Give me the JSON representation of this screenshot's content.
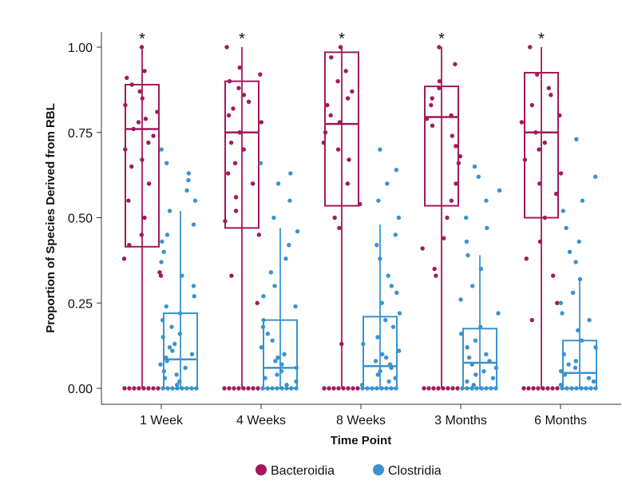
{
  "chart_data": {
    "type": "box",
    "title": "",
    "xlabel": "Time Point",
    "ylabel": "Proportion of Species Derived from RBL",
    "categories": [
      "1 Week",
      "4 Weeks",
      "8 Weeks",
      "3 Months",
      "6 Months"
    ],
    "ylim": [
      -0.05,
      1.05
    ],
    "yticks": [
      0.0,
      0.25,
      0.5,
      0.75,
      1.0
    ],
    "ytick_labels": [
      "0.00",
      "0.25",
      "0.50",
      "0.75",
      "1.00"
    ],
    "significance": [
      "*",
      "*",
      "*",
      "*",
      "*"
    ],
    "legend": {
      "position": "bottom",
      "entries": [
        "Bacteroidia",
        "Clostridia"
      ]
    },
    "grid": false,
    "series": [
      {
        "name": "Bacteroidia",
        "color": "#a3195b",
        "boxes": [
          {
            "whisker_low": 0.0,
            "q1": 0.415,
            "median": 0.76,
            "q3": 0.89,
            "whisker_high": 1.0
          },
          {
            "whisker_low": 0.0,
            "q1": 0.47,
            "median": 0.75,
            "q3": 0.9,
            "whisker_high": 1.0
          },
          {
            "whisker_low": 0.0,
            "q1": 0.535,
            "median": 0.775,
            "q3": 0.985,
            "whisker_high": 1.0
          },
          {
            "whisker_low": 0.0,
            "q1": 0.535,
            "median": 0.795,
            "q3": 0.885,
            "whisker_high": 1.0
          },
          {
            "whisker_low": 0.0,
            "q1": 0.5,
            "median": 0.75,
            "q3": 0.925,
            "whisker_high": 1.0
          }
        ],
        "points": [
          [
            1,
            0.93,
            0.91,
            0.89,
            0.87,
            0.85,
            0.83,
            0.81,
            0.79,
            0.78,
            0.76,
            0.74,
            0.72,
            0.7,
            0.67,
            0.65,
            0.6,
            0.55,
            0.5,
            0.45,
            0.42,
            0.38,
            0.34,
            0.33
          ],
          [
            1,
            0.94,
            0.92,
            0.9,
            0.88,
            0.86,
            0.84,
            0.82,
            0.8,
            0.78,
            0.75,
            0.72,
            0.7,
            0.66,
            0.63,
            0.6,
            0.56,
            0.52,
            0.49,
            0.45,
            0.33,
            0.25
          ],
          [
            1,
            0.97,
            0.93,
            0.9,
            0.87,
            0.85,
            0.83,
            0.8,
            0.78,
            0.75,
            0.72,
            0.7,
            0.67,
            0.6,
            0.54,
            0.5,
            0.47,
            0.13
          ],
          [
            1,
            0.95,
            0.9,
            0.88,
            0.85,
            0.83,
            0.8,
            0.79,
            0.77,
            0.74,
            0.71,
            0.68,
            0.66,
            0.6,
            0.55,
            0.5,
            0.44,
            0.41,
            0.35,
            0.33
          ],
          [
            1,
            0.92,
            0.88,
            0.86,
            0.83,
            0.8,
            0.78,
            0.75,
            0.72,
            0.7,
            0.67,
            0.63,
            0.6,
            0.57,
            0.5,
            0.43,
            0.38,
            0.33,
            0.25,
            0.2
          ]
        ]
      },
      {
        "name": "Clostridia",
        "color": "#3a93d0",
        "boxes": [
          {
            "whisker_low": 0.0,
            "q1": 0.0,
            "median": 0.085,
            "q3": 0.22,
            "whisker_high": 0.52
          },
          {
            "whisker_low": 0.0,
            "q1": 0.0,
            "median": 0.06,
            "q3": 0.2,
            "whisker_high": 0.47
          },
          {
            "whisker_low": 0.0,
            "q1": 0.0,
            "median": 0.065,
            "q3": 0.21,
            "whisker_high": 0.48
          },
          {
            "whisker_low": 0.0,
            "q1": 0.0,
            "median": 0.075,
            "q3": 0.175,
            "whisker_high": 0.39
          },
          {
            "whisker_low": 0.0,
            "q1": 0.0,
            "median": 0.045,
            "q3": 0.14,
            "whisker_high": 0.32
          }
        ],
        "points": [
          [
            0.7,
            0.66,
            0.63,
            0.61,
            0.58,
            0.55,
            0.52,
            0.48,
            0.45,
            0.43,
            0.4,
            0.37,
            0.33,
            0.3,
            0.27,
            0.24,
            0.22,
            0.2,
            0.18,
            0.16,
            0.15,
            0.13,
            0.12,
            0.11,
            0.1,
            0.09,
            0.08,
            0.07,
            0.06,
            0.05,
            0.04,
            0.03,
            0.02,
            0.01
          ],
          [
            0.66,
            0.63,
            0.6,
            0.55,
            0.5,
            0.46,
            0.42,
            0.38,
            0.34,
            0.3,
            0.27,
            0.24,
            0.2,
            0.18,
            0.16,
            0.14,
            0.12,
            0.1,
            0.09,
            0.08,
            0.07,
            0.06,
            0.05,
            0.04,
            0.03,
            0.02,
            0.01
          ],
          [
            0.7,
            0.64,
            0.6,
            0.55,
            0.5,
            0.45,
            0.42,
            0.38,
            0.33,
            0.3,
            0.28,
            0.25,
            0.22,
            0.2,
            0.18,
            0.15,
            0.13,
            0.11,
            0.1,
            0.09,
            0.08,
            0.07,
            0.06,
            0.05,
            0.04,
            0.03,
            0.02,
            0.01
          ],
          [
            0.65,
            0.62,
            0.58,
            0.55,
            0.5,
            0.47,
            0.43,
            0.39,
            0.35,
            0.3,
            0.26,
            0.22,
            0.18,
            0.16,
            0.14,
            0.12,
            0.1,
            0.09,
            0.08,
            0.07,
            0.06,
            0.05,
            0.04,
            0.03,
            0.02,
            0.01
          ],
          [
            0.73,
            0.62,
            0.55,
            0.52,
            0.47,
            0.43,
            0.4,
            0.37,
            0.32,
            0.28,
            0.25,
            0.22,
            0.2,
            0.17,
            0.14,
            0.12,
            0.1,
            0.08,
            0.07,
            0.06,
            0.05,
            0.04,
            0.03,
            0.02,
            0.01
          ]
        ]
      }
    ]
  }
}
